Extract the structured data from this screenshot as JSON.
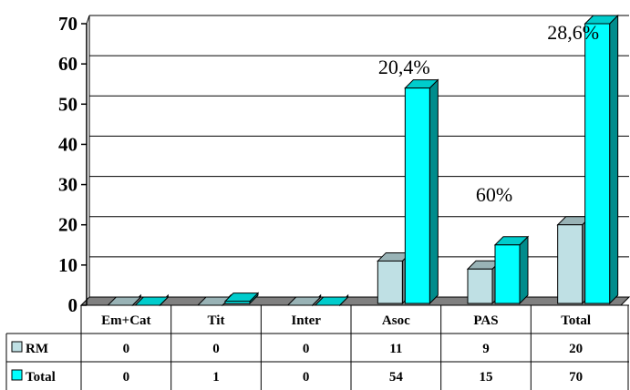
{
  "chart_data": {
    "type": "bar",
    "categories": [
      "Em+Cat",
      "Tit",
      "Inter",
      "Asoc",
      "PAS",
      "Total"
    ],
    "series": [
      {
        "name": "RM",
        "values": [
          0,
          0,
          0,
          11,
          9,
          20
        ],
        "color": "#bfe0e4"
      },
      {
        "name": "Total",
        "values": [
          0,
          1,
          0,
          54,
          15,
          70
        ],
        "color": "#00ffff"
      }
    ],
    "ylim": [
      0,
      70
    ],
    "yticks": [
      0,
      10,
      20,
      30,
      40,
      50,
      60,
      70
    ],
    "grid": true,
    "legend": "data-table-left",
    "annotations": [
      {
        "category": "Asoc",
        "text": "20,4%"
      },
      {
        "category": "PAS",
        "text": "60%"
      },
      {
        "category": "Total",
        "text": "28,6%"
      }
    ]
  }
}
